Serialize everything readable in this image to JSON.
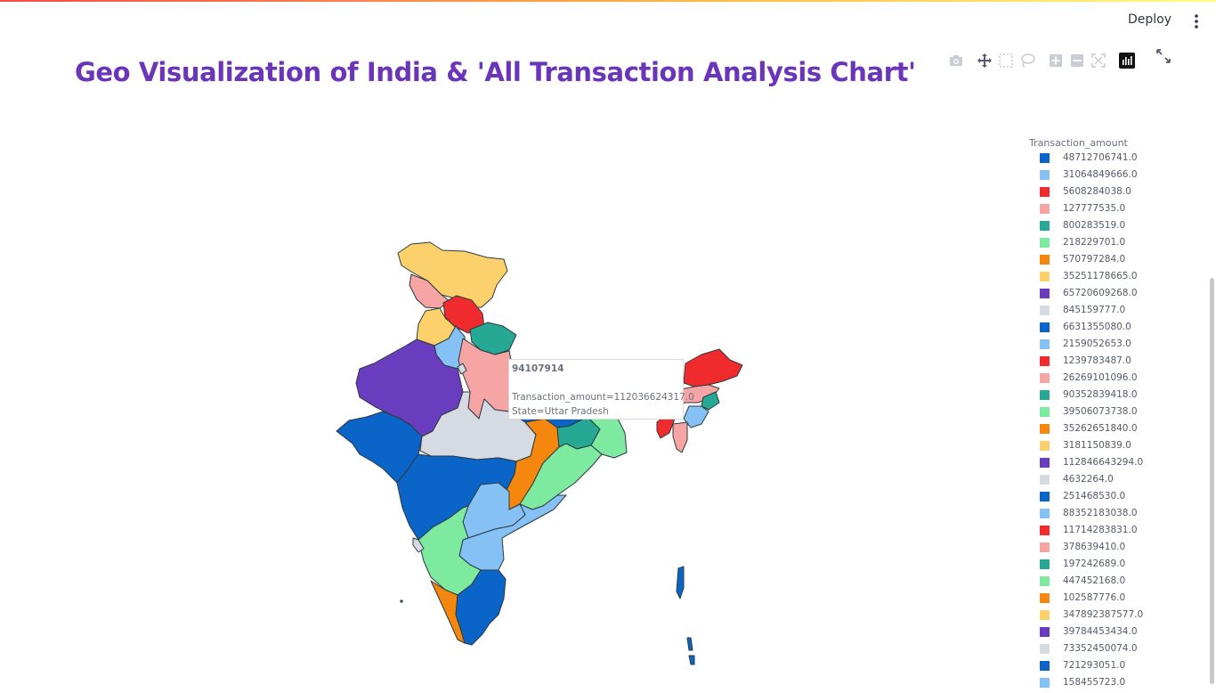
{
  "header": {
    "deploy_label": "Deploy"
  },
  "page": {
    "title": "Geo Visualization of India & 'All Transaction Analysis Chart'"
  },
  "modebar": {
    "buttons": [
      "camera-icon",
      "pan-icon",
      "box-select-icon",
      "lasso-icon",
      "zoom-in-icon",
      "zoom-out-icon",
      "reset-axes-icon",
      "plotly-logo-icon"
    ],
    "fullscreen": "fullscreen-icon"
  },
  "tooltip": {
    "title": "94107914",
    "amount_line": "Transaction_amount=112036624317.0",
    "state_line": "State=Uttar Pradesh"
  },
  "legend": {
    "title": "Transaction_amount",
    "items": [
      {
        "label": "48712706741.0",
        "color": "#0b64c8"
      },
      {
        "label": "31064849666.0",
        "color": "#85c1f5"
      },
      {
        "label": "5608284038.0",
        "color": "#ef2b2e"
      },
      {
        "label": "127777535.0",
        "color": "#f7a4a4"
      },
      {
        "label": "800283519.0",
        "color": "#26a895"
      },
      {
        "label": "218229701.0",
        "color": "#7deaa0"
      },
      {
        "label": "570797284.0",
        "color": "#f6870e"
      },
      {
        "label": "35251178665.0",
        "color": "#fcd16b"
      },
      {
        "label": "65720609268.0",
        "color": "#6a3cbe"
      },
      {
        "label": "845159777.0",
        "color": "#d6dae3"
      },
      {
        "label": "6631355080.0",
        "color": "#0b64c8"
      },
      {
        "label": "2159052653.0",
        "color": "#85c1f5"
      },
      {
        "label": "1239783487.0",
        "color": "#ef2b2e"
      },
      {
        "label": "26269101096.0",
        "color": "#f7a4a4"
      },
      {
        "label": "90352839418.0",
        "color": "#26a895"
      },
      {
        "label": "39506073738.0",
        "color": "#7deaa0"
      },
      {
        "label": "35262651840.0",
        "color": "#f6870e"
      },
      {
        "label": "3181150839.0",
        "color": "#fcd16b"
      },
      {
        "label": "112846643294.0",
        "color": "#6a3cbe"
      },
      {
        "label": "4632264.0",
        "color": "#d6dae3"
      },
      {
        "label": "251468530.0",
        "color": "#0b64c8"
      },
      {
        "label": "88352183038.0",
        "color": "#85c1f5"
      },
      {
        "label": "11714283831.0",
        "color": "#ef2b2e"
      },
      {
        "label": "378639410.0",
        "color": "#f7a4a4"
      },
      {
        "label": "197242689.0",
        "color": "#26a895"
      },
      {
        "label": "447452168.0",
        "color": "#7deaa0"
      },
      {
        "label": "102587776.0",
        "color": "#f6870e"
      },
      {
        "label": "347892387577.0",
        "color": "#fcd16b"
      },
      {
        "label": "39784453434.0",
        "color": "#6a3cbe"
      },
      {
        "label": "73352450074.0",
        "color": "#d6dae3"
      },
      {
        "label": "721293051.0",
        "color": "#0b64c8"
      },
      {
        "label": "158455723.0",
        "color": "#85c1f5"
      }
    ]
  },
  "colors": {
    "title": "#6a35b8",
    "map_outline": "#2b3a3e"
  }
}
